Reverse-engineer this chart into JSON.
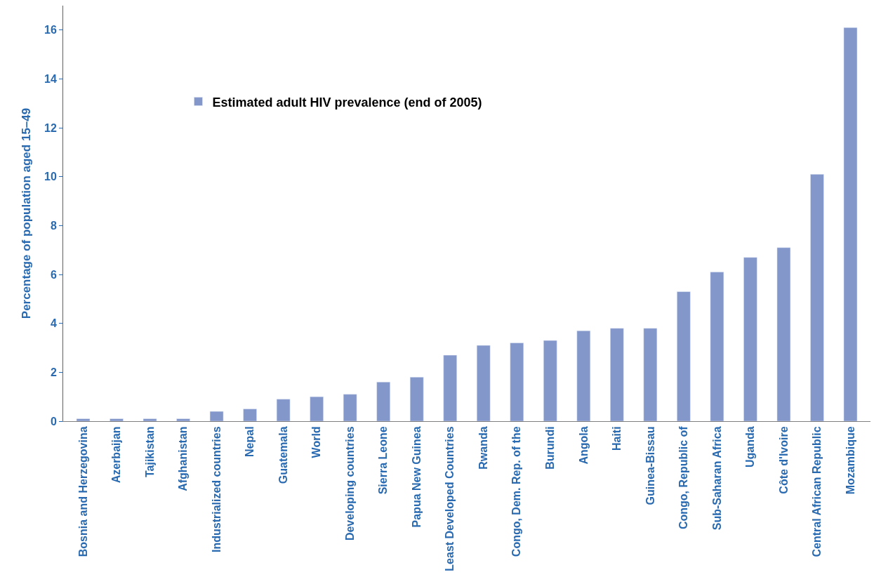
{
  "chart_data": {
    "type": "bar",
    "ylabel": "Percentage of population aged 15–49",
    "categories": [
      "Bosnia and Herzegovina",
      "Azerbaijan",
      "Tajikistan",
      "Afghanistan",
      "Industrialized countries",
      "Nepal",
      "Guatemala",
      "World",
      "Developing countries",
      "Sierra Leone",
      "Papua New Guinea",
      "Least Developed Countries",
      "Rwanda",
      "Congo, Dem. Rep. of the",
      "Burundi",
      "Angola",
      "Haiti",
      "Guinea-Bissau",
      "Congo, Republic of",
      "Sub-Saharan Africa",
      "Uganda",
      "Côte d'Ivoire",
      "Central African Republic",
      "Mozambique"
    ],
    "series": [
      {
        "name": "Estimated adult HIV prevalence (end of 2005)",
        "color": "#8497cb",
        "values": [
          0.1,
          0.1,
          0.1,
          0.1,
          0.4,
          0.5,
          0.9,
          1.0,
          1.1,
          1.6,
          1.8,
          2.7,
          3.1,
          3.2,
          3.3,
          3.7,
          3.8,
          3.8,
          5.3,
          6.1,
          6.7,
          7.1,
          10.1,
          16.1
        ]
      }
    ],
    "ylim": [
      0,
      17
    ],
    "yticks": [
      0,
      2,
      4,
      6,
      8,
      10,
      12,
      14,
      16
    ],
    "legend": "top left"
  }
}
